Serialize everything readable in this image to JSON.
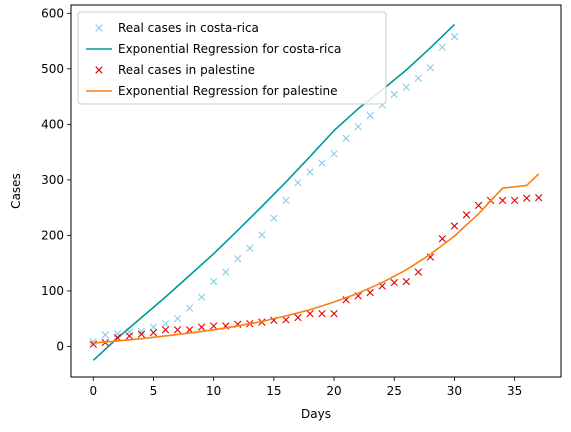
{
  "chart_data": {
    "type": "line",
    "xlabel": "Days",
    "ylabel": "Cases",
    "xlim": [
      -1.85,
      38.85
    ],
    "ylim": [
      -55,
      615
    ],
    "xticks": [
      0,
      5,
      10,
      15,
      20,
      25,
      30,
      35
    ],
    "yticks": [
      0,
      100,
      200,
      300,
      400,
      500,
      600
    ],
    "grid": false,
    "legend_position": "top-left",
    "series": [
      {
        "name": "Real cases in costa-rica",
        "kind": "scatter",
        "marker": "x",
        "color": "#87ceeb",
        "x": [
          0,
          1,
          2,
          3,
          4,
          5,
          6,
          7,
          8,
          9,
          10,
          11,
          12,
          13,
          14,
          15,
          16,
          17,
          18,
          19,
          20,
          21,
          22,
          23,
          24,
          25,
          26,
          27,
          28,
          29,
          30
        ],
        "y": [
          9,
          21,
          23,
          26,
          27,
          35,
          41,
          50,
          69,
          89,
          117,
          134,
          158,
          177,
          201,
          231,
          263,
          295,
          314,
          330,
          347,
          375,
          396,
          416,
          435,
          454,
          467,
          483,
          502,
          539,
          558
        ]
      },
      {
        "name": "Exponential Regression for costa-rica",
        "kind": "line",
        "color": "#009999",
        "x": [
          0,
          2,
          4,
          6,
          8,
          10,
          12,
          14,
          16,
          18,
          20,
          22,
          24,
          26,
          28,
          30
        ],
        "y": [
          -25,
          15,
          52,
          89,
          128,
          167,
          209,
          252,
          296,
          342,
          389,
          428,
          462,
          498,
          538,
          580
        ]
      },
      {
        "name": "Real cases in palestine",
        "kind": "scatter",
        "marker": "x",
        "color": "#e00000",
        "x": [
          0,
          1,
          2,
          3,
          4,
          5,
          6,
          7,
          8,
          9,
          10,
          11,
          12,
          13,
          14,
          15,
          16,
          17,
          18,
          19,
          20,
          21,
          22,
          23,
          24,
          25,
          26,
          27,
          28,
          29,
          30,
          31,
          32,
          33,
          34,
          35,
          36,
          37
        ],
        "y": [
          4,
          7,
          16,
          19,
          22,
          25,
          30,
          30,
          30,
          35,
          37,
          37,
          40,
          41,
          44,
          47,
          48,
          52,
          59,
          59,
          59,
          84,
          91,
          97,
          109,
          115,
          117,
          134,
          161,
          194,
          217,
          237,
          254,
          263,
          263,
          263,
          267,
          268
        ]
      },
      {
        "name": "Exponential Regression for palestine",
        "kind": "line",
        "color": "#ff7f0e",
        "x": [
          0,
          2,
          4,
          6,
          8,
          10,
          12,
          14,
          16,
          18,
          20,
          22,
          24,
          26,
          28,
          30,
          32,
          34,
          36,
          37
        ],
        "y": [
          6,
          10,
          14,
          19,
          24,
          30,
          37,
          45,
          55,
          66,
          80,
          96,
          115,
          138,
          166,
          199,
          239,
          285,
          290,
          311
        ]
      }
    ]
  }
}
